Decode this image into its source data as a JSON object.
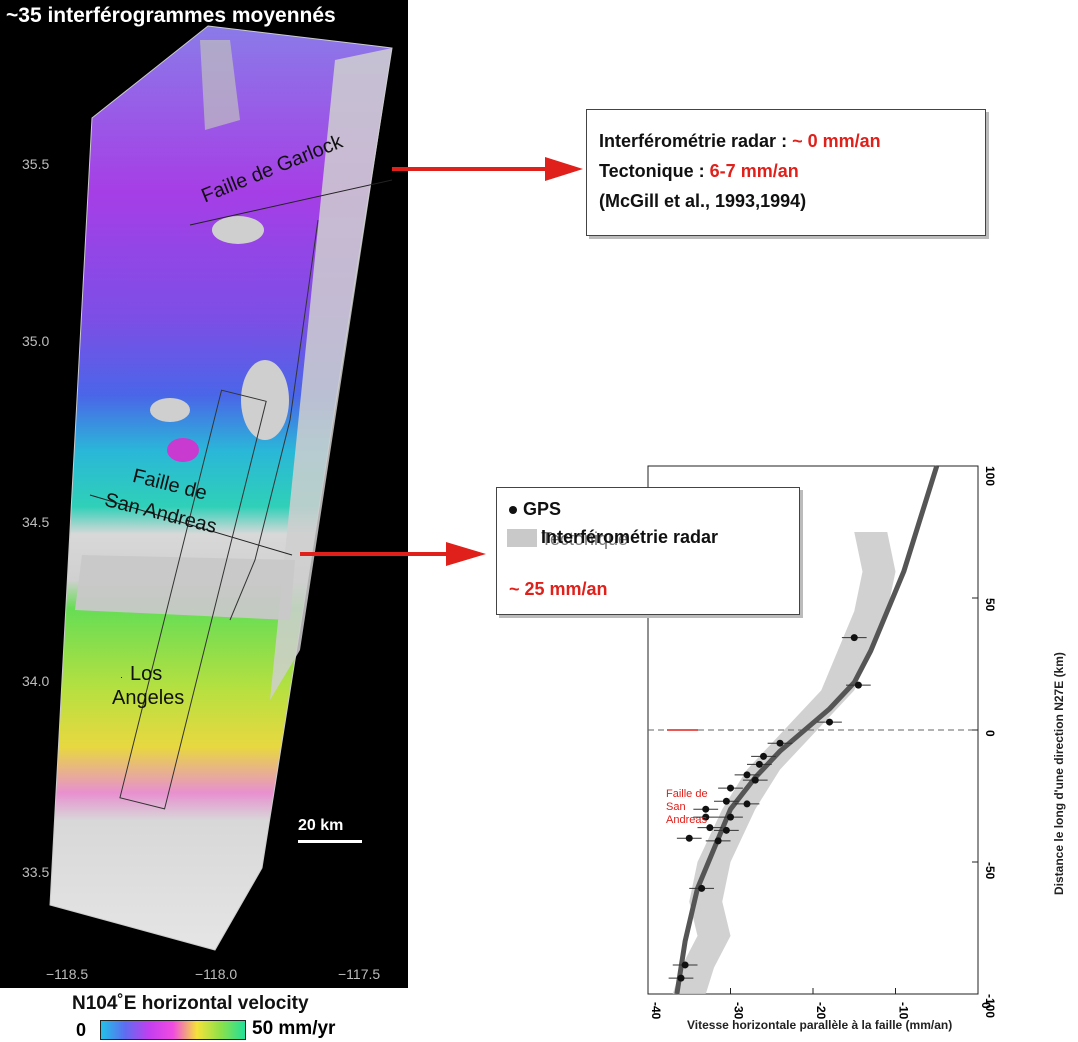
{
  "map": {
    "title": "~35 interférogrammes moyennés",
    "lat_ticks": [
      "35.5",
      "35.0",
      "34.5",
      "34.0",
      "33.5"
    ],
    "lon_ticks": [
      "−118.5",
      "−118.0",
      "−117.5"
    ],
    "labels": {
      "garlock": "Faille de Garlock",
      "san_andreas_1": "Faille de",
      "san_andreas_2": "San Andreas",
      "la_1": "Los",
      "la_2": "Angeles"
    },
    "scale_label": "20 km",
    "colorbar": {
      "title": "N104˚E horizontal velocity",
      "min": "0",
      "max": "50 mm/yr"
    }
  },
  "box1": {
    "line1_prefix": "Interférométrie radar : ",
    "line1_value": "~ 0 mm/an",
    "line2_prefix": "Tectonique : ",
    "line2_value": "6-7 mm/an",
    "line3": "(McGill et al., 1993,1994)"
  },
  "box2": {
    "legend_gps": "GPS",
    "legend_radar": "Interférométrie radar",
    "tectonique": "Tectonique",
    "value": "~ 25 mm/an"
  },
  "colors": {
    "red": "#e0201b",
    "band": "#c9c9c9",
    "curve": "#555555"
  },
  "chart_data": {
    "type": "scatter",
    "xlabel": "Vitesse horizontale parallèle à la faille (mm/an)",
    "ylabel": "Distance le long d'une direction N27E (km)",
    "xlim": [
      -40,
      0
    ],
    "ylim": [
      -100,
      100
    ],
    "x_ticks": [
      -40,
      -30,
      -20,
      -10,
      0
    ],
    "y_ticks": [
      -100,
      -50,
      0,
      50,
      100
    ],
    "annotation": {
      "label": "Faille de San Andreas",
      "y": 0
    },
    "series": [
      {
        "name": "GPS",
        "points": [
          {
            "x": -15,
            "y": 35
          },
          {
            "x": -14.5,
            "y": 17
          },
          {
            "x": -18,
            "y": 3
          },
          {
            "x": -24,
            "y": -5
          },
          {
            "x": -26,
            "y": -10
          },
          {
            "x": -26.5,
            "y": -13
          },
          {
            "x": -28,
            "y": -17
          },
          {
            "x": -27,
            "y": -19
          },
          {
            "x": -30,
            "y": -22
          },
          {
            "x": -30.5,
            "y": -27
          },
          {
            "x": -28,
            "y": -28
          },
          {
            "x": -33,
            "y": -30
          },
          {
            "x": -33,
            "y": -33
          },
          {
            "x": -30,
            "y": -33
          },
          {
            "x": -32.5,
            "y": -37
          },
          {
            "x": -30.5,
            "y": -38
          },
          {
            "x": -35,
            "y": -41
          },
          {
            "x": -31.5,
            "y": -42
          },
          {
            "x": -33.5,
            "y": -60
          },
          {
            "x": -35.5,
            "y": -89
          },
          {
            "x": -36,
            "y": -94
          }
        ]
      },
      {
        "name": "Tectonique",
        "points": [
          {
            "x": -5,
            "y": 100
          },
          {
            "x": -7,
            "y": 80
          },
          {
            "x": -9,
            "y": 60
          },
          {
            "x": -11,
            "y": 45
          },
          {
            "x": -13,
            "y": 30
          },
          {
            "x": -15,
            "y": 18
          },
          {
            "x": -18,
            "y": 8
          },
          {
            "x": -21,
            "y": 0
          },
          {
            "x": -24,
            "y": -8
          },
          {
            "x": -27,
            "y": -18
          },
          {
            "x": -30,
            "y": -30
          },
          {
            "x": -32,
            "y": -45
          },
          {
            "x": -34,
            "y": -60
          },
          {
            "x": -35.5,
            "y": -80
          },
          {
            "x": -36.5,
            "y": -100
          }
        ]
      },
      {
        "name": "Interférométrie radar",
        "points": [
          {
            "x": -13,
            "y": 75
          },
          {
            "x": -12,
            "y": 60
          },
          {
            "x": -13,
            "y": 45
          },
          {
            "x": -15,
            "y": 30
          },
          {
            "x": -17,
            "y": 15
          },
          {
            "x": -20,
            "y": 5
          },
          {
            "x": -23,
            "y": -5
          },
          {
            "x": -26,
            "y": -15
          },
          {
            "x": -29,
            "y": -30
          },
          {
            "x": -32,
            "y": -50
          },
          {
            "x": -33,
            "y": -65
          },
          {
            "x": -32,
            "y": -78
          },
          {
            "x": -34,
            "y": -90
          },
          {
            "x": -35,
            "y": -100
          }
        ]
      }
    ]
  }
}
